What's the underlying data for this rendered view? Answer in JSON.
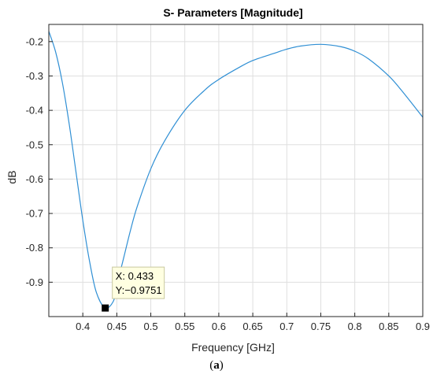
{
  "chart_data": {
    "type": "line",
    "title": "S- Parameters [Magnitude]",
    "xlabel": "Frequency [GHz]",
    "ylabel": "dB",
    "xlim": [
      0.35,
      0.9
    ],
    "ylim": [
      -1.0,
      -0.15
    ],
    "xticks": [
      "0.4",
      "0.45",
      "0.5",
      "0.55",
      "0.6",
      "0.65",
      "0.7",
      "0.75",
      "0.8",
      "0.85",
      "0.9"
    ],
    "yticks": [
      "-0.2",
      "-0.3",
      "-0.4",
      "-0.5",
      "-0.6",
      "-0.7",
      "-0.8",
      "-0.9"
    ],
    "grid": true,
    "series": [
      {
        "color": "#2f8fd4",
        "x": [
          0.35,
          0.36,
          0.37,
          0.38,
          0.39,
          0.4,
          0.41,
          0.42,
          0.433,
          0.445,
          0.45,
          0.46,
          0.47,
          0.48,
          0.5,
          0.52,
          0.55,
          0.58,
          0.6,
          0.63,
          0.65,
          0.68,
          0.7,
          0.72,
          0.75,
          0.78,
          0.8,
          0.82,
          0.85,
          0.87,
          0.9
        ],
        "y": [
          -0.17,
          -0.23,
          -0.32,
          -0.44,
          -0.58,
          -0.72,
          -0.84,
          -0.93,
          -0.9751,
          -0.955,
          -0.91,
          -0.83,
          -0.75,
          -0.68,
          -0.57,
          -0.49,
          -0.4,
          -0.34,
          -0.31,
          -0.275,
          -0.255,
          -0.235,
          -0.222,
          -0.213,
          -0.208,
          -0.215,
          -0.228,
          -0.25,
          -0.3,
          -0.345,
          -0.42
        ]
      }
    ],
    "datatip": {
      "x": 0.433,
      "y": -0.9751,
      "x_text": "X: 0.433",
      "y_text": "Y:−0.9751"
    }
  },
  "caption": "a"
}
